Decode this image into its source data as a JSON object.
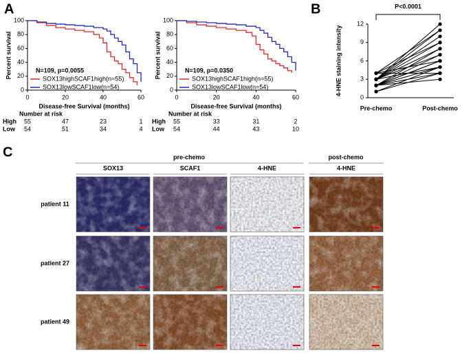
{
  "panel_labels": [
    "A",
    "B",
    "C"
  ],
  "chart_data": [
    {
      "type": "km",
      "ylabel": "Percent survival",
      "xlabel": "Disease-free Survival (months)",
      "annotation": "N=109, p=0.0055",
      "xlim": [
        0,
        60
      ],
      "xticks": [
        0,
        20,
        40,
        60
      ],
      "ylim": [
        0,
        100
      ],
      "yticks": [
        0,
        20,
        40,
        60,
        80,
        100
      ],
      "series": [
        {
          "name": "SOX13highSCAF1high(n=55)",
          "color": "#e8262a",
          "x": [
            0,
            5,
            10,
            15,
            20,
            25,
            30,
            35,
            38,
            40,
            42,
            44,
            46,
            48,
            50,
            52,
            54,
            56,
            58
          ],
          "values": [
            100,
            97,
            93,
            90,
            88,
            86,
            84,
            80,
            75,
            68,
            55,
            48,
            42,
            38,
            30,
            25,
            18,
            12,
            7
          ]
        },
        {
          "name": "SOX13lowSCAF1low(n=54)",
          "color": "#2424c8",
          "x": [
            0,
            5,
            10,
            15,
            20,
            25,
            30,
            35,
            40,
            42,
            44,
            46,
            48,
            50,
            52,
            54,
            56,
            58,
            60
          ],
          "values": [
            100,
            98,
            96,
            95,
            94,
            93,
            92,
            90,
            88,
            85,
            80,
            75,
            70,
            65,
            55,
            45,
            38,
            25,
            12
          ]
        }
      ],
      "risk_table": {
        "title": "Number at risk",
        "rows": [
          {
            "label": "High",
            "values": [
              55,
              47,
              23,
              1
            ]
          },
          {
            "label": "Low",
            "values": [
              54,
              51,
              34,
              4
            ]
          }
        ]
      }
    },
    {
      "type": "km",
      "ylabel": "Percent survival",
      "xlabel": "Disease-free Survival (months)",
      "annotation": "N=109, p=0.0350",
      "xlim": [
        0,
        60
      ],
      "xticks": [
        0,
        20,
        40,
        60
      ],
      "ylim": [
        0,
        100
      ],
      "yticks": [
        0,
        20,
        40,
        60,
        80,
        100
      ],
      "series": [
        {
          "name": "SOX13highSCAF1high(n=55)",
          "color": "#e8262a",
          "x": [
            0,
            5,
            10,
            15,
            20,
            25,
            30,
            35,
            38,
            40,
            42,
            44,
            46,
            48,
            50,
            52,
            54,
            56,
            58
          ],
          "values": [
            100,
            97,
            94,
            92,
            90,
            88,
            86,
            83,
            78,
            66,
            58,
            52,
            45,
            42,
            38,
            35,
            32,
            28,
            25
          ]
        },
        {
          "name": "SOX13lowSCAF1low(n=54)",
          "color": "#2424c8",
          "x": [
            0,
            5,
            10,
            15,
            20,
            25,
            30,
            35,
            40,
            42,
            44,
            46,
            48,
            50,
            52,
            54,
            56,
            58,
            60
          ],
          "values": [
            100,
            99,
            98,
            97,
            96,
            95,
            94,
            92,
            90,
            86,
            82,
            76,
            70,
            66,
            60,
            55,
            48,
            40,
            28
          ]
        }
      ],
      "risk_table": {
        "title": "Number at risk",
        "rows": [
          {
            "label": "High",
            "values": [
              55,
              33,
              31,
              2
            ]
          },
          {
            "label": "Low",
            "values": [
              54,
              44,
              43,
              10
            ]
          }
        ]
      }
    },
    {
      "type": "paired",
      "ylabel": "4-HNE staining intensity",
      "categories": [
        "Pre-chemo",
        "Post-chemo"
      ],
      "annotation": "P<0.0001",
      "ylim": [
        0,
        12
      ],
      "yticks": [
        0,
        3,
        6,
        9,
        12
      ],
      "color": "#000000",
      "pre": [
        1,
        1,
        2,
        2,
        2,
        2,
        2,
        2,
        3,
        3,
        3,
        3,
        3,
        3,
        3,
        4,
        4,
        4,
        4,
        2
      ],
      "post": [
        4,
        5,
        4,
        6,
        7,
        8,
        5,
        6,
        9,
        10,
        11,
        12,
        7,
        8,
        5,
        4,
        6,
        9,
        11,
        3
      ]
    }
  ],
  "histology": {
    "groups": [
      "pre-chemo",
      "post-chemo"
    ],
    "columns": [
      "SOX13",
      "SCAF1",
      "4-HNE",
      "4-HNE"
    ],
    "rows": [
      "patient 11",
      "patient 27",
      "patient 49"
    ]
  }
}
